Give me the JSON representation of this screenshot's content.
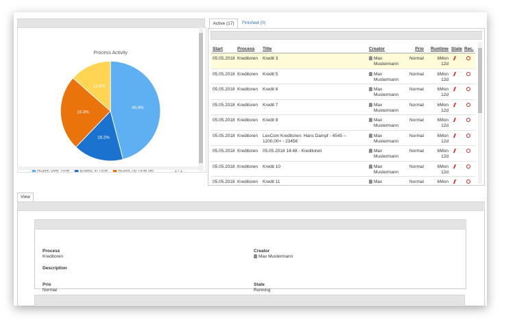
{
  "left_panel": {
    "chart_data": {
      "type": "pie",
      "title": "Process Activity",
      "categories": [
        "Active, over Time",
        "Ended, in Time",
        "Active, no Time set",
        null
      ],
      "values": [
        45.9,
        16.2,
        24.3,
        13.5
      ],
      "value_labels": [
        "45.9%",
        "16.2%",
        "24.3%",
        "13.5%"
      ],
      "colors": [
        "#5fb0f2",
        "#1c72cf",
        "#ea730c",
        "#ffd553"
      ],
      "legend_page": "1 / 2"
    }
  },
  "tabs": [
    "Active (17)",
    "Finished (0)"
  ],
  "table": {
    "columns": [
      "Start",
      "Process",
      "Title",
      "Creator",
      "Prio",
      "Runtime",
      "State",
      "Rec."
    ],
    "rows": [
      [
        "05.05.2018",
        "Kreditoren",
        "Kredit 3",
        "Max Mustermann",
        "Normal",
        "6Mon 12d"
      ],
      [
        "05.05.2018",
        "Kreditoren",
        "Kredit 5",
        "Max Mustermann",
        "Normal",
        "6Mon 12d"
      ],
      [
        "05.05.2018",
        "Kreditoren",
        "Kredit 6",
        "Max Mustermann",
        "Normal",
        "6Mon 12d"
      ],
      [
        "05.05.2018",
        "Kreditoren",
        "Kredit 7",
        "Max Mustermann",
        "Normal",
        "6Mon 12d"
      ],
      [
        "05.05.2018",
        "Kreditoren",
        "Kredit 8",
        "Max Mustermann",
        "Normal",
        "6Mon 12d"
      ],
      [
        "05.05.2018",
        "Kreditoren",
        "LexCom Kreditoren: Hans Dampf - 4545 -- 1200,00+ - 23456",
        "Max Mustermann",
        "Normal",
        "6Mon 12d"
      ],
      [
        "05.05.2018",
        "Kreditoren",
        "05.05.2018 14:48 - Kreditoren",
        "Max Mustermann",
        "Normal",
        "6Mon 12d"
      ],
      [
        "05.05.2018",
        "Kreditoren",
        "Kredit 10",
        "Max Mustermann",
        "Normal",
        "6Mon 12d"
      ],
      [
        "05.05.2018",
        "Kreditoren",
        "Kredit 11",
        "Max Mustermann",
        "Normal",
        "6Mon"
      ]
    ]
  },
  "view_tab": "View",
  "details": {
    "fields": [
      {
        "label": "Process",
        "value": "Kreditoren"
      },
      {
        "label": "Creator",
        "value": "Max Mustermann"
      },
      {
        "label": "Description",
        "value": null
      },
      {
        "label": "Prio",
        "value": "Normal"
      },
      {
        "label": "State",
        "value": "Running"
      }
    ]
  }
}
